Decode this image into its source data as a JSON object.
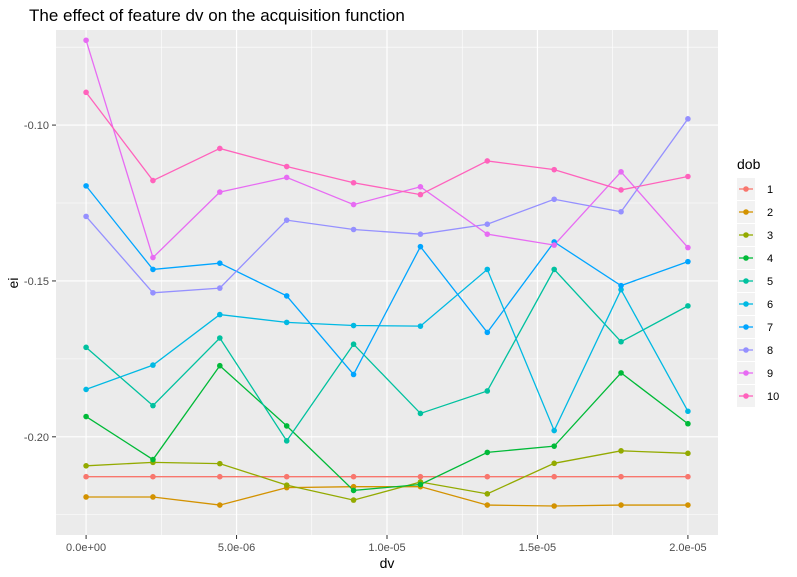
{
  "chart_data": {
    "type": "line",
    "title": "The effect of feature dv on the acquisition function",
    "xlabel": "dv",
    "ylabel": "ei",
    "xlim": [
      -1e-06,
      2.1e-05
    ],
    "ylim": [
      -0.2315,
      -0.0695
    ],
    "x": [
      0,
      2.222e-06,
      4.444e-06,
      6.667e-06,
      8.889e-06,
      1.1111e-05,
      1.3333e-05,
      1.5556e-05,
      1.7778e-05,
      2e-05
    ],
    "x_ticks": [
      0,
      5e-06,
      1e-05,
      1.5e-05,
      2e-05
    ],
    "x_tick_labels": [
      "0.0e+00",
      "5.0e-06",
      "1.0e-05",
      "1.5e-05",
      "2.0e-05"
    ],
    "y_ticks": [
      -0.1,
      -0.15,
      -0.2
    ],
    "y_tick_labels": [
      "-0.10",
      "-0.15",
      "-0.20"
    ],
    "grid": true,
    "legend": {
      "title": "dob",
      "position": "right"
    },
    "series": [
      {
        "name": "1",
        "color": "#F8766D",
        "values": [
          -0.2128,
          -0.2128,
          -0.2128,
          -0.2128,
          -0.2128,
          -0.2128,
          -0.2128,
          -0.2128,
          -0.2128,
          -0.2128
        ]
      },
      {
        "name": "2",
        "color": "#D39200",
        "values": [
          -0.2193,
          -0.2193,
          -0.2219,
          -0.2163,
          -0.216,
          -0.216,
          -0.2219,
          -0.2222,
          -0.2219,
          -0.2219
        ]
      },
      {
        "name": "3",
        "color": "#93AA00",
        "values": [
          -0.2093,
          -0.2082,
          -0.2086,
          -0.2155,
          -0.2203,
          -0.2145,
          -0.2183,
          -0.2085,
          -0.2045,
          -0.2053
        ]
      },
      {
        "name": "4",
        "color": "#00BA38",
        "values": [
          -0.1935,
          -0.2073,
          -0.1772,
          -0.1965,
          -0.2172,
          -0.2153,
          -0.205,
          -0.203,
          -0.1795,
          -0.1958
        ]
      },
      {
        "name": "5",
        "color": "#00C19F",
        "values": [
          -0.1713,
          -0.19,
          -0.1683,
          -0.2013,
          -0.1703,
          -0.1925,
          -0.1853,
          -0.1463,
          -0.1695,
          -0.158
        ]
      },
      {
        "name": "6",
        "color": "#00B9E3",
        "values": [
          -0.1848,
          -0.177,
          -0.1608,
          -0.1633,
          -0.1643,
          -0.1645,
          -0.1463,
          -0.198,
          -0.1528,
          -0.1918
        ]
      },
      {
        "name": "7",
        "color": "#00A5FF",
        "values": [
          -0.1195,
          -0.1463,
          -0.1443,
          -0.1548,
          -0.18,
          -0.139,
          -0.1665,
          -0.1375,
          -0.1515,
          -0.1438
        ]
      },
      {
        "name": "8",
        "color": "#9590FF",
        "values": [
          -0.1293,
          -0.1538,
          -0.1523,
          -0.1305,
          -0.1335,
          -0.135,
          -0.1318,
          -0.1238,
          -0.1278,
          -0.098
        ]
      },
      {
        "name": "9",
        "color": "#E76BF3",
        "values": [
          -0.0728,
          -0.1425,
          -0.1215,
          -0.1168,
          -0.1255,
          -0.1198,
          -0.135,
          -0.1385,
          -0.115,
          -0.1393
        ]
      },
      {
        "name": "10",
        "color": "#FF62BC",
        "values": [
          -0.0895,
          -0.1178,
          -0.1075,
          -0.1133,
          -0.1185,
          -0.1223,
          -0.1115,
          -0.1143,
          -0.1208,
          -0.1165
        ]
      }
    ]
  }
}
